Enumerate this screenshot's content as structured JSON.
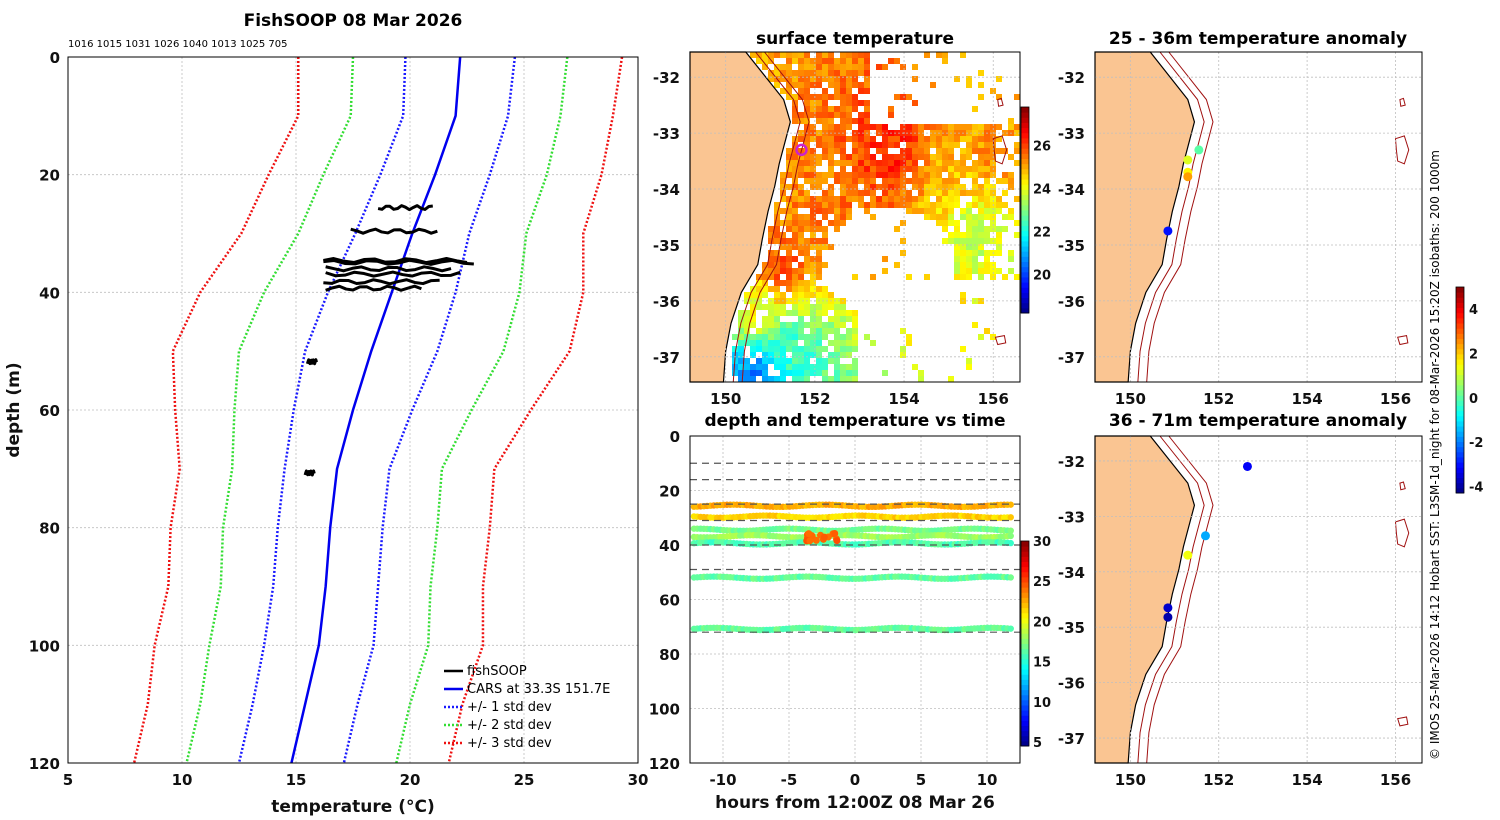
{
  "figure_title": "FishSOOP 08 Mar 2026",
  "ids_line": "1016 1015 1031 1026 1040 1013 1025 705",
  "side_note": "© IMOS 25-Mar-2026 14:12 Hobart SST: L3SM-1d_night for 08-Mar-2026 15:20Z isobaths: 200  1000m",
  "colors": {
    "land": "#fac592",
    "obs": "#000000",
    "cars": "#0000ee",
    "std1": "#1a1aff",
    "std2": "#33dd33",
    "std3": "#ee1111",
    "isobath": "#a01010",
    "marker": "#cc22cc"
  },
  "chart_data": [
    {
      "id": "profile",
      "type": "line",
      "title": "",
      "xlabel": "temperature (°C)",
      "ylabel": "depth (m)",
      "xlim": [
        5,
        30
      ],
      "ylim": [
        0,
        120
      ],
      "xticks": [
        5,
        10,
        15,
        20,
        25,
        30
      ],
      "yticks": [
        0,
        20,
        40,
        60,
        80,
        100,
        120
      ],
      "legend": {
        "placement": "bottom-right",
        "entries": [
          {
            "label": "fishSOOP",
            "key": "obs"
          },
          {
            "label": "CARS at 33.3S 151.7E",
            "key": "cars"
          },
          {
            "label": "+/- 1 std dev",
            "key": "std1"
          },
          {
            "label": "+/- 2 std dev",
            "key": "std2"
          },
          {
            "label": "+/- 3 std dev",
            "key": "std3"
          }
        ]
      },
      "depth": [
        0,
        10,
        20,
        30,
        40,
        50,
        60,
        70,
        80,
        90,
        100,
        110,
        120
      ],
      "cars_mean": [
        22.2,
        22.0,
        21.1,
        20.1,
        19.2,
        18.3,
        17.5,
        16.8,
        16.5,
        16.3,
        16.0,
        15.4,
        14.8
      ],
      "std_halfwidths": [
        {
          "name": "+/- 1 std dev",
          "key": "std1",
          "half": [
            2.4,
            2.3,
            2.4,
            2.5,
            2.8,
            2.9,
            2.6,
            2.3,
            2.3,
            2.3,
            2.4,
            2.3,
            2.3
          ]
        },
        {
          "name": "+/- 2 std dev",
          "key": "std2",
          "half": [
            4.7,
            4.6,
            4.9,
            5.0,
            5.6,
            5.8,
            5.2,
            4.6,
            4.7,
            4.6,
            4.8,
            4.6,
            4.6
          ]
        },
        {
          "name": "+/- 3 std dev",
          "key": "std3",
          "half": [
            7.1,
            6.9,
            7.3,
            7.5,
            8.4,
            8.7,
            7.8,
            6.9,
            7.0,
            6.9,
            7.2,
            6.9,
            6.9
          ]
        }
      ],
      "obs_segments": [
        {
          "t0": 18.6,
          "t1": 21.0,
          "d": 25.6
        },
        {
          "t0": 17.4,
          "t1": 21.2,
          "d": 29.6
        },
        {
          "t0": 16.2,
          "t1": 22.5,
          "d": 34.6
        },
        {
          "t0": 16.2,
          "t1": 22.8,
          "d": 34.9
        },
        {
          "t0": 16.3,
          "t1": 21.8,
          "d": 36.0
        },
        {
          "t0": 16.3,
          "t1": 22.2,
          "d": 36.9
        },
        {
          "t0": 16.2,
          "t1": 21.3,
          "d": 38.2
        },
        {
          "t0": 16.3,
          "t1": 20.5,
          "d": 39.3
        },
        {
          "t0": 15.5,
          "t1": 15.9,
          "d": 51.8
        },
        {
          "t0": 15.4,
          "t1": 15.8,
          "d": 70.7
        }
      ]
    },
    {
      "id": "sst_map",
      "type": "heatmap",
      "title": "surface temperature",
      "xlim": [
        149.2,
        156.6
      ],
      "ylim": [
        -37.45,
        -31.55
      ],
      "xticks": [
        150,
        152,
        154,
        156
      ],
      "yticks": [
        -32,
        -33,
        -34,
        -35,
        -36,
        -37
      ],
      "colorbar": {
        "min": 18.2,
        "max": 27.8,
        "ticks": [
          20,
          22,
          24,
          26
        ]
      },
      "ship_marker": {
        "lon": 151.7,
        "lat": -33.3
      },
      "sst_blobs": [
        {
          "lon": 153.6,
          "lat": -33.3,
          "value": 26.2
        },
        {
          "lon": 152.3,
          "lat": -34.2,
          "value": 25.5
        },
        {
          "lon": 155.2,
          "lat": -33.9,
          "value": 24.8
        },
        {
          "lon": 155.5,
          "lat": -34.6,
          "value": 23.6
        },
        {
          "lon": 151.2,
          "lat": -35.4,
          "value": 25.8
        },
        {
          "lon": 150.6,
          "lat": -36.2,
          "value": 24.0
        },
        {
          "lon": 151.4,
          "lat": -36.8,
          "value": 22.4
        },
        {
          "lon": 150.6,
          "lat": -37.2,
          "value": 20.6
        },
        {
          "lon": 155.9,
          "lat": -33.3,
          "value": 25.2
        }
      ]
    },
    {
      "id": "time_series",
      "type": "scatter",
      "title": "depth and temperature vs time",
      "xlabel": "hours from 12:00Z 08 Mar 26",
      "xlim": [
        -12.5,
        12.5
      ],
      "ylim": [
        0,
        120
      ],
      "xticks": [
        -10,
        -5,
        0,
        5,
        10
      ],
      "yticks": [
        0,
        20,
        40,
        60,
        80,
        100,
        120
      ],
      "colorbar": {
        "min": 4.5,
        "max": 30,
        "ticks": [
          5,
          10,
          15,
          20,
          25,
          30
        ]
      },
      "dashed_depths": [
        10,
        16,
        25,
        31,
        40,
        49,
        72
      ],
      "tracks": [
        {
          "depth": 25.6,
          "temp": 22.5
        },
        {
          "depth": 29.6,
          "temp": 21.5
        },
        {
          "depth": 34.4,
          "temp": 17.0
        },
        {
          "depth": 36.8,
          "temp": 18.0
        },
        {
          "depth": 39.4,
          "temp": 16.0
        },
        {
          "depth": 52.0,
          "temp": 16.5
        },
        {
          "depth": 70.8,
          "temp": 16.5
        }
      ],
      "warm_patch": {
        "hour": -2.5,
        "depth": 37.0,
        "temp": 24.5
      }
    },
    {
      "id": "anom_25_36",
      "type": "scatter",
      "title": "25 - 36m temperature anomaly",
      "xlim": [
        149.2,
        156.6
      ],
      "ylim": [
        -37.45,
        -31.55
      ],
      "xticks": [
        150,
        152,
        154,
        156
      ],
      "yticks": [
        -32,
        -33,
        -34,
        -35,
        -36,
        -37
      ],
      "points": [
        {
          "lon": 151.55,
          "lat": -33.3,
          "anomaly": 0.0
        },
        {
          "lon": 151.3,
          "lat": -33.48,
          "anomaly": 1.2
        },
        {
          "lon": 151.3,
          "lat": -33.7,
          "anomaly": 1.6
        },
        {
          "lon": 151.3,
          "lat": -33.78,
          "anomaly": 2.4
        },
        {
          "lon": 150.85,
          "lat": -34.75,
          "anomaly": -3.0
        }
      ]
    },
    {
      "id": "anom_36_71",
      "type": "scatter",
      "title": "36 - 71m temperature anomaly",
      "xlim": [
        149.2,
        156.6
      ],
      "ylim": [
        -37.45,
        -31.55
      ],
      "xticks": [
        150,
        152,
        154,
        156
      ],
      "yticks": [
        -32,
        -33,
        -34,
        -35,
        -36,
        -37
      ],
      "points": [
        {
          "lon": 152.65,
          "lat": -32.1,
          "anomaly": -3.2
        },
        {
          "lon": 151.7,
          "lat": -33.35,
          "anomaly": -1.6
        },
        {
          "lon": 151.3,
          "lat": -33.7,
          "anomaly": 1.4
        },
        {
          "lon": 150.85,
          "lat": -34.65,
          "anomaly": -3.6
        },
        {
          "lon": 150.85,
          "lat": -34.82,
          "anomaly": -3.9
        }
      ],
      "colorbar": {
        "min": -4.3,
        "max": 5.0,
        "ticks": [
          -4,
          -2,
          0,
          2,
          4
        ]
      }
    }
  ]
}
